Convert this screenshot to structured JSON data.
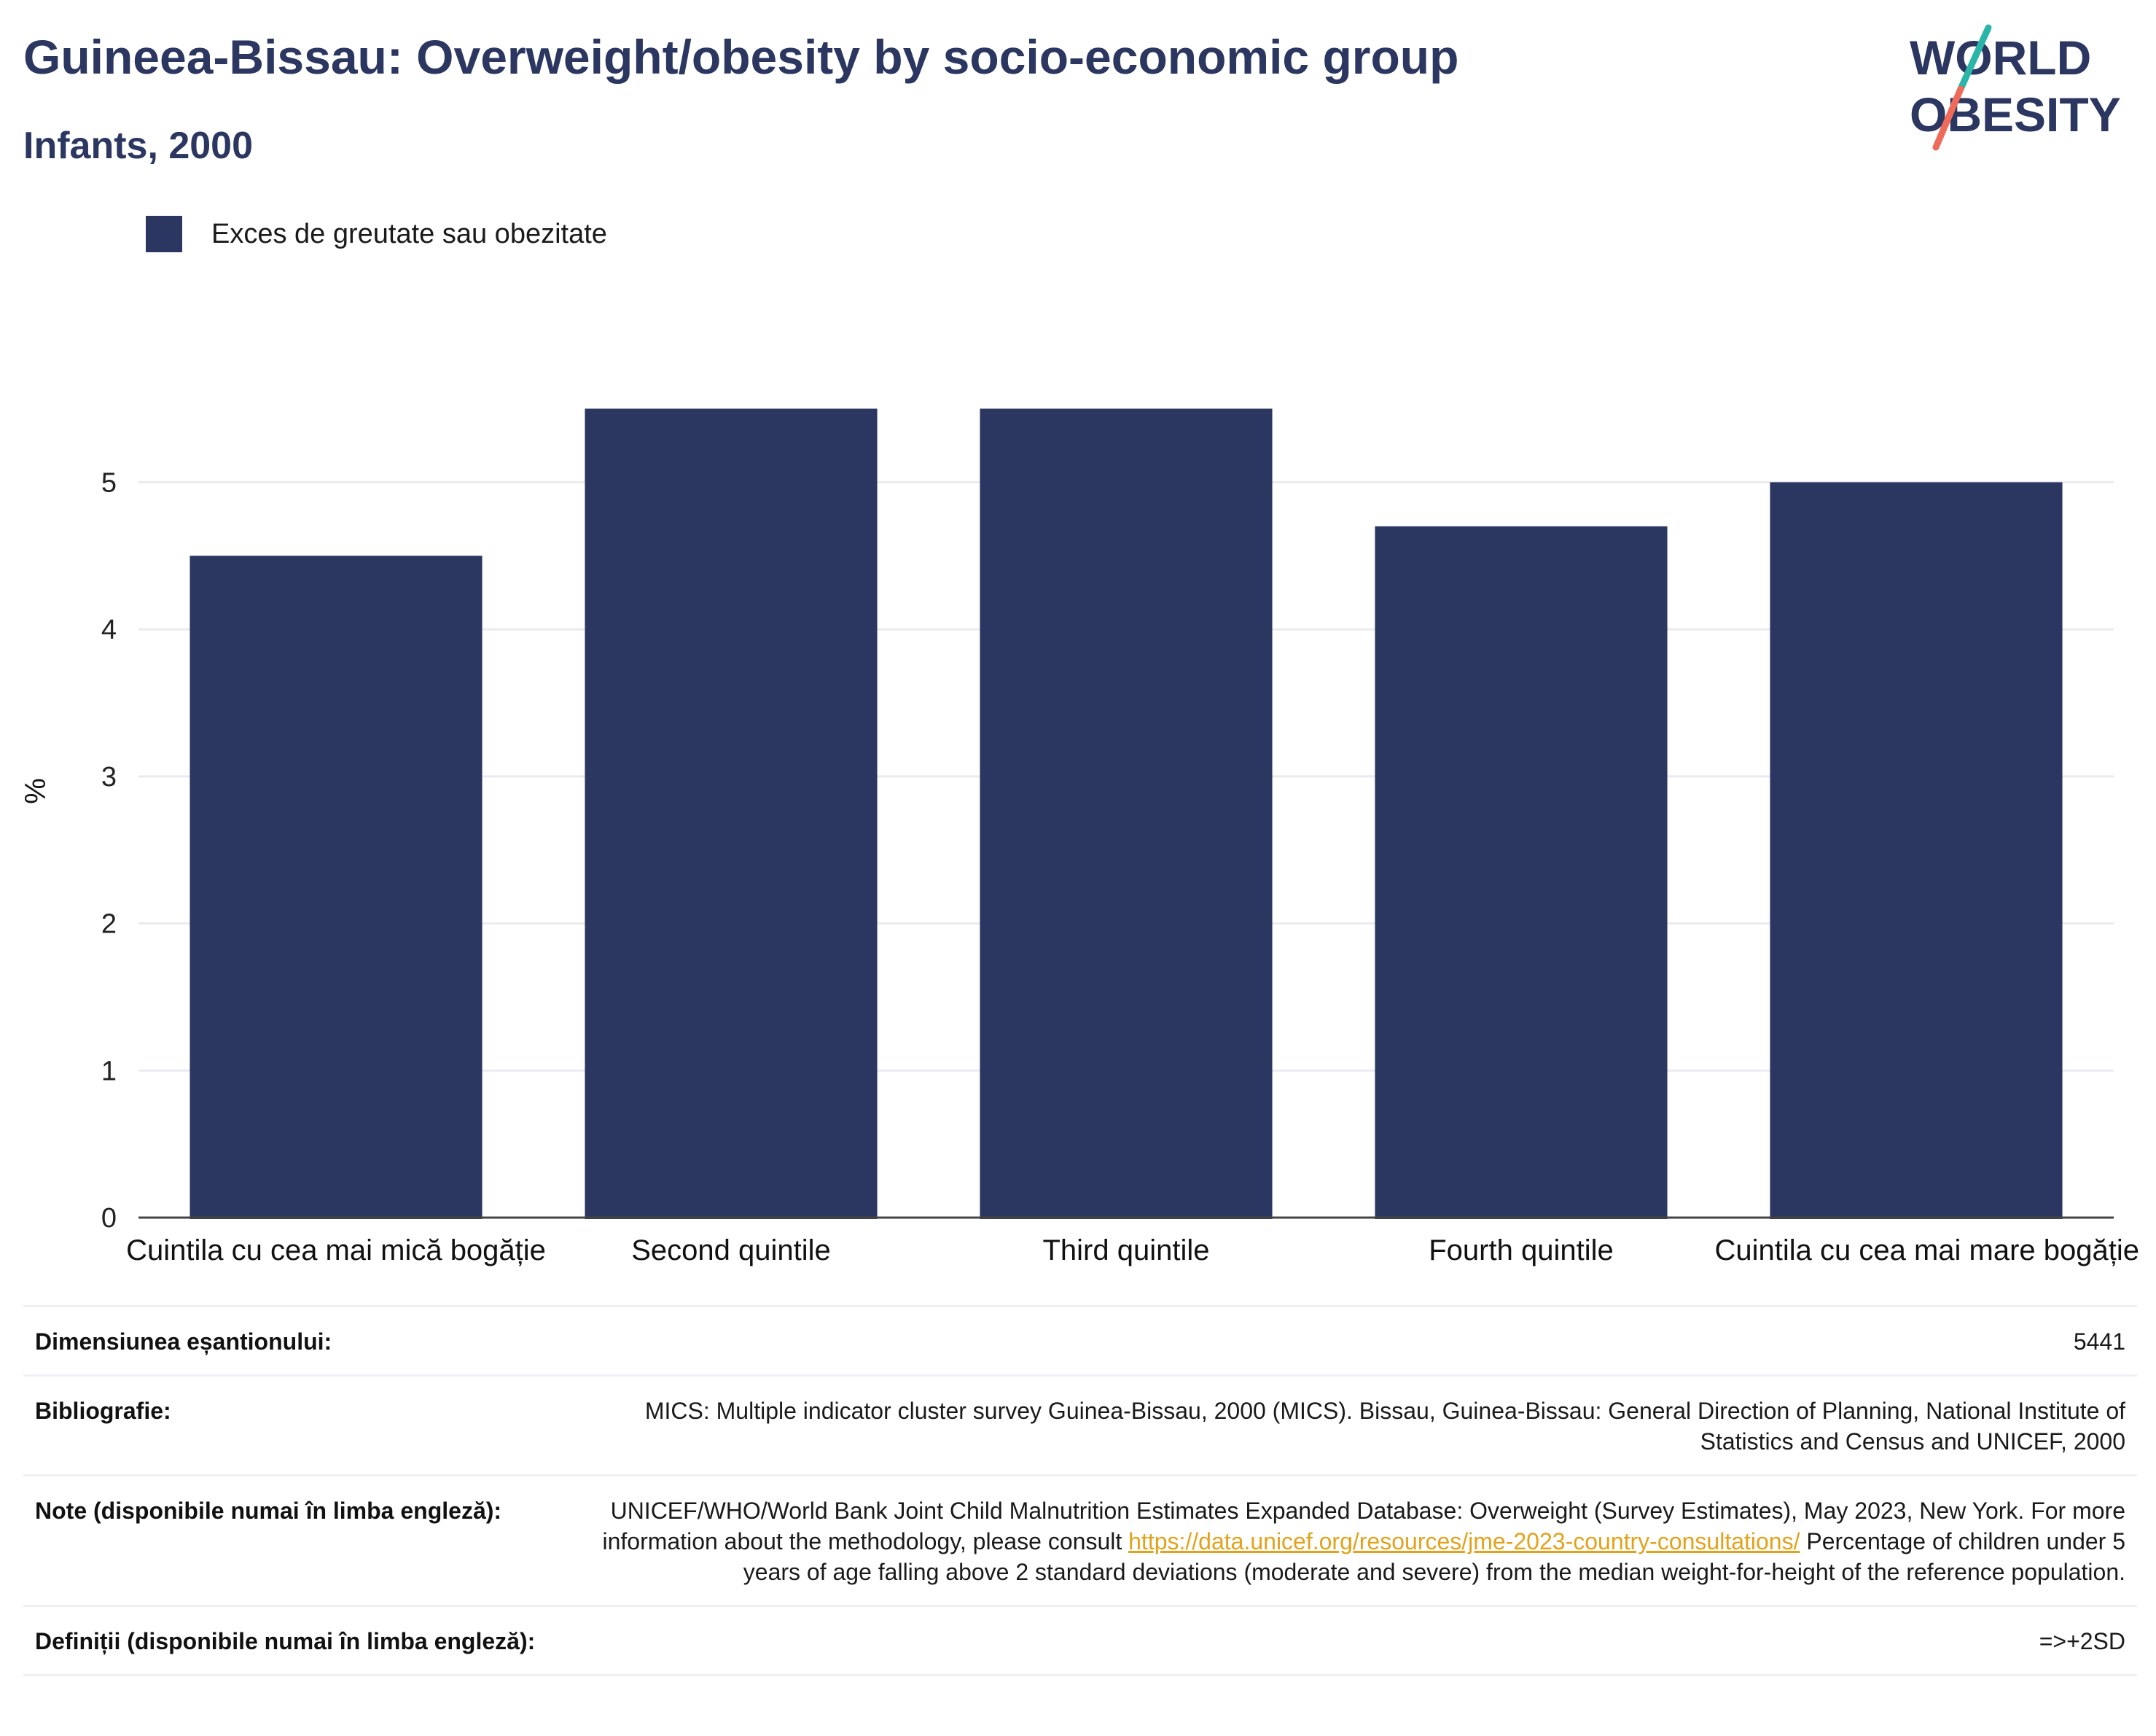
{
  "header": {
    "title": "Guineea-Bissau: Overweight/obesity by socio-economic group",
    "subtitle": "Infants, 2000"
  },
  "logo": {
    "line1": "WORLD",
    "line2": "OBESITY"
  },
  "colors": {
    "bar": "#2b3661",
    "title": "#2b3661",
    "link": "#e3a21a",
    "logo_teal": "#2ab5a9",
    "logo_coral": "#ee6b5a"
  },
  "chart_data": {
    "type": "bar",
    "title": "Guineea-Bissau: Overweight/obesity by socio-economic group",
    "subtitle": "Infants, 2000",
    "categories": [
      "Cuintila cu cea mai mică bogăție",
      "Second quintile",
      "Third quintile",
      "Fourth quintile",
      "Cuintila cu cea mai mare bogăție"
    ],
    "series": [
      {
        "name": "Exces de greutate sau obezitate",
        "values": [
          4.5,
          5.5,
          5.5,
          4.7,
          5.0
        ]
      }
    ],
    "xlabel": "",
    "ylabel": "%",
    "ylim": [
      0,
      5.8
    ],
    "yticks": [
      0,
      1,
      2,
      3,
      4,
      5
    ],
    "grid": true,
    "legend": "top-left"
  },
  "info": [
    {
      "label": "Dimensiunea eșantionului:",
      "value": "5441"
    },
    {
      "label": "Bibliografie:",
      "value": "MICS: Multiple indicator cluster survey Guinea-Bissau, 2000 (MICS). Bissau, Guinea-Bissau: General Direction of Planning, National Institute of Statistics and Census and UNICEF, 2000"
    },
    {
      "label": "Note (disponibile numai în limba engleză):",
      "value_before": "UNICEF/WHO/World Bank Joint Child Malnutrition Estimates Expanded Database: Overweight (Survey Estimates), May 2023, New York. For more information about the methodology, please consult ",
      "link": "https://data.unicef.org/resources/jme-2023-country-consultations/",
      "value_after": " Percentage of children under 5 years of age falling above 2 standard deviations (moderate and severe) from the median weight-for-height of the reference population."
    },
    {
      "label": "Definiții (disponibile numai în limba engleză):",
      "value": "=>+2SD"
    }
  ]
}
